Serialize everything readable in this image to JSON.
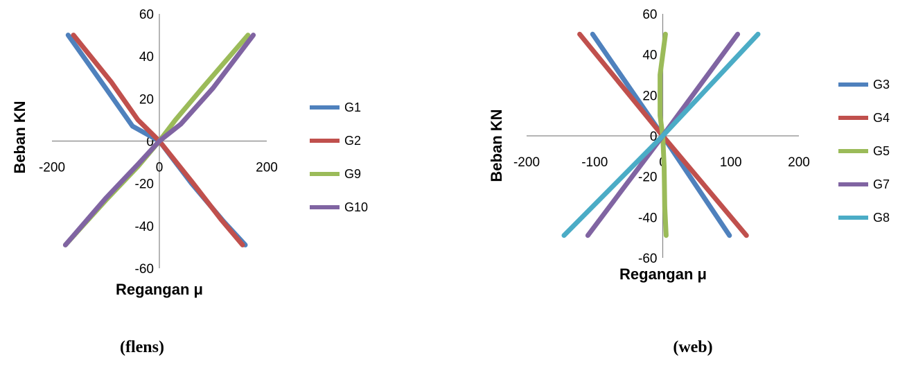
{
  "chart_data": [
    {
      "type": "line",
      "caption": "(flens)",
      "xlabel": "Regangan μ",
      "ylabel": "Beban KN",
      "xlim": [
        -200,
        200
      ],
      "ylim": [
        -60,
        60
      ],
      "x_ticks": [
        -200,
        0,
        200
      ],
      "y_ticks": [
        -60,
        -40,
        -20,
        0,
        20,
        40,
        60
      ],
      "grid": false,
      "legend_position": "right",
      "series": [
        {
          "name": "G1",
          "color": "#4F81BD",
          "points": [
            [
              -170,
              50
            ],
            [
              -100,
              25
            ],
            [
              -50,
              7
            ],
            [
              0,
              0
            ],
            [
              60,
              -20
            ],
            [
              120,
              -38
            ],
            [
              160,
              -49
            ]
          ]
        },
        {
          "name": "G2",
          "color": "#C0504D",
          "points": [
            [
              -160,
              50
            ],
            [
              -90,
              28
            ],
            [
              -40,
              10
            ],
            [
              0,
              0
            ],
            [
              60,
              -19
            ],
            [
              115,
              -37
            ],
            [
              155,
              -49
            ]
          ]
        },
        {
          "name": "G9",
          "color": "#9BBB59",
          "points": [
            [
              -175,
              -49
            ],
            [
              -100,
              -28
            ],
            [
              -40,
              -12
            ],
            [
              0,
              0
            ],
            [
              30,
              10
            ],
            [
              80,
              25
            ],
            [
              165,
              50
            ]
          ]
        },
        {
          "name": "G10",
          "color": "#8064A2",
          "points": [
            [
              -175,
              -49
            ],
            [
              -100,
              -27
            ],
            [
              -40,
              -11
            ],
            [
              0,
              0
            ],
            [
              40,
              8
            ],
            [
              100,
              25
            ],
            [
              175,
              50
            ]
          ]
        }
      ]
    },
    {
      "type": "line",
      "caption": "(web)",
      "xlabel": "Regangan μ",
      "ylabel": "Beban KN",
      "xlim": [
        -200,
        200
      ],
      "ylim": [
        -60,
        60
      ],
      "x_ticks": [
        -200,
        -100,
        0,
        100,
        200
      ],
      "y_ticks": [
        -60,
        -40,
        -20,
        0,
        20,
        40,
        60
      ],
      "grid": false,
      "legend_position": "right",
      "series": [
        {
          "name": "G3",
          "color": "#4F81BD",
          "points": [
            [
              -103,
              50
            ],
            [
              0,
              0
            ],
            [
              98,
              -49
            ]
          ]
        },
        {
          "name": "G4",
          "color": "#C0504D",
          "points": [
            [
              -122,
              50
            ],
            [
              0,
              0
            ],
            [
              123,
              -49
            ]
          ]
        },
        {
          "name": "G5",
          "color": "#9BBB59",
          "points": [
            [
              4,
              50
            ],
            [
              -4,
              30
            ],
            [
              -4,
              10
            ],
            [
              0,
              0
            ],
            [
              2,
              -15
            ],
            [
              3,
              -35
            ],
            [
              5,
              -49
            ]
          ]
        },
        {
          "name": "G7",
          "color": "#8064A2",
          "points": [
            [
              -110,
              -49
            ],
            [
              0,
              0
            ],
            [
              110,
              50
            ]
          ]
        },
        {
          "name": "G8",
          "color": "#4BACC6",
          "points": [
            [
              -145,
              -49
            ],
            [
              0,
              0
            ],
            [
              140,
              50
            ]
          ]
        }
      ]
    }
  ]
}
